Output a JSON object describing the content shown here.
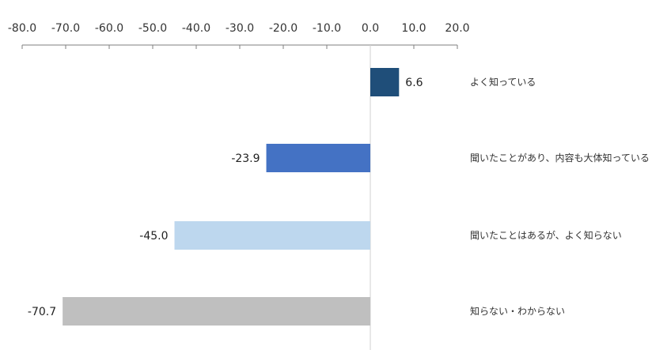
{
  "chart_data": {
    "type": "bar",
    "orientation": "horizontal",
    "title": "",
    "xlabel": "",
    "ylabel": "",
    "xlim": [
      -80,
      20
    ],
    "x_ticks": [
      -80,
      -70,
      -60,
      -50,
      -40,
      -30,
      -20,
      -10,
      0,
      10,
      20
    ],
    "x_tick_labels": [
      "-80.0",
      "-70.0",
      "-60.0",
      "-50.0",
      "-40.0",
      "-30.0",
      "-20.0",
      "-10.0",
      "0.0",
      "10.0",
      "20.0"
    ],
    "categories": [
      "よく知っている",
      "聞いたことがあり、内容も大体知っている",
      "聞いたことはあるが、よく知らない",
      "知らない・わからない"
    ],
    "values": [
      6.6,
      -23.9,
      -45.0,
      -70.7
    ],
    "value_labels": [
      "6.6",
      "-23.9",
      "-45.0",
      "-70.7"
    ],
    "colors": [
      "#1f4e79",
      "#4472c4",
      "#bdd7ee",
      "#bfbfbf"
    ],
    "grid": false,
    "legend": "none"
  }
}
